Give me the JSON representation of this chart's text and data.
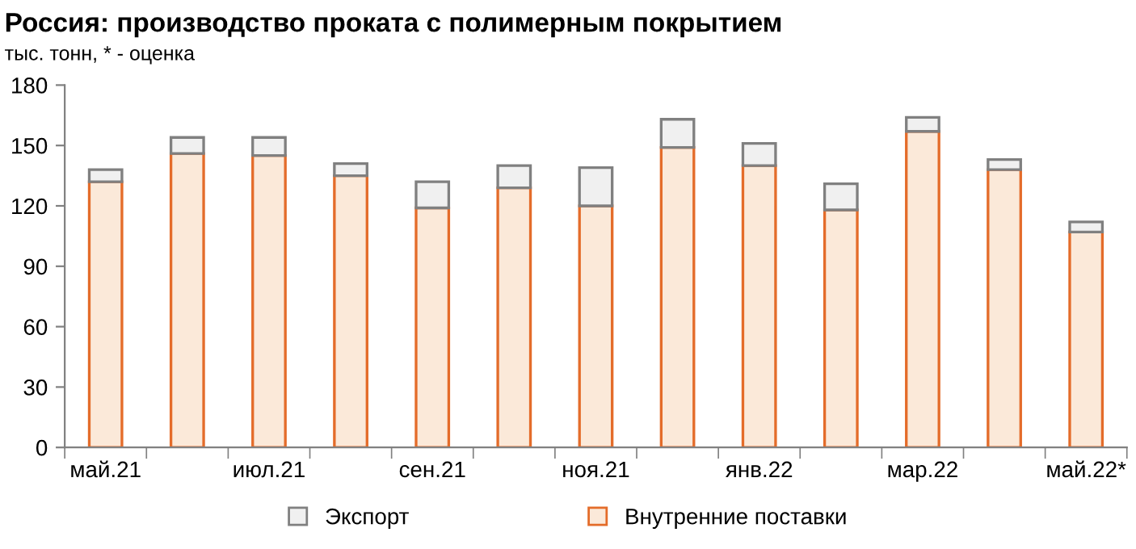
{
  "chart_data": {
    "type": "bar",
    "stacked": true,
    "title": "Россия: производство проката с полимерным покрытием",
    "subtitle": "тыс. тонн, * - оценка",
    "categories": [
      "май.21",
      null,
      "июл.21",
      null,
      "сен.21",
      null,
      "ноя.21",
      null,
      "янв.22",
      null,
      "мар.22",
      null,
      "май.22*"
    ],
    "series": [
      {
        "name": "Внутренние поставки",
        "color": "#fbe9d9",
        "values": [
          132,
          146,
          145,
          135,
          119,
          129,
          120,
          149,
          140,
          118,
          157,
          138,
          107
        ]
      },
      {
        "name": "Экспорт",
        "color": "#f0f0f0",
        "values": [
          6,
          8,
          9,
          6,
          13,
          11,
          19,
          14,
          11,
          13,
          7,
          5,
          5
        ]
      }
    ],
    "ylim": [
      0,
      180
    ],
    "yticks": [
      0,
      30,
      60,
      90,
      120,
      150,
      180
    ],
    "grid": false,
    "legend": "bottom"
  }
}
